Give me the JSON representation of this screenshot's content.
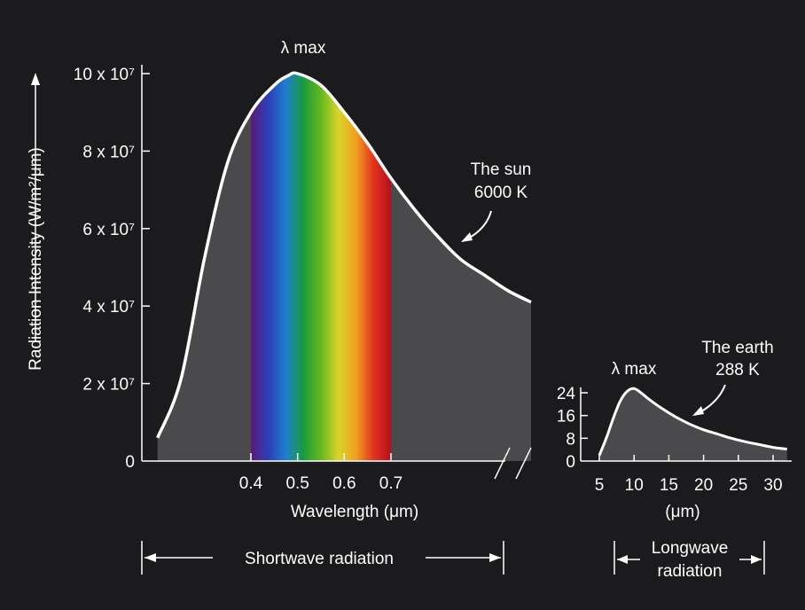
{
  "chart_data": [
    {
      "type": "line",
      "title": "",
      "xlabel": "Wavelength (μm)",
      "ylabel": "Radiation Intensity (W/m²/μm)",
      "ylim": [
        0,
        100000000
      ],
      "yticks": [
        {
          "value": 0,
          "label": "0"
        },
        {
          "value": 20000000,
          "label": "2 x 10⁷"
        },
        {
          "value": 40000000,
          "label": "4 x 10⁷"
        },
        {
          "value": 60000000,
          "label": "6 x 10⁷"
        },
        {
          "value": 80000000,
          "label": "8 x 10⁷"
        },
        {
          "value": 100000000,
          "label": "10 x 10⁷"
        }
      ],
      "xticks": [
        {
          "value": 0.4,
          "label": "0.4"
        },
        {
          "value": 0.5,
          "label": "0.5"
        },
        {
          "value": 0.6,
          "label": "0.6"
        },
        {
          "value": 0.7,
          "label": "0.7"
        }
      ],
      "visible_band": [
        0.4,
        0.7
      ],
      "series": [
        {
          "name": "The sun 6000 K",
          "x": [
            0.2,
            0.25,
            0.3,
            0.35,
            0.4,
            0.45,
            0.48,
            0.5,
            0.55,
            0.6,
            0.65,
            0.7,
            0.75,
            0.8,
            0.85,
            0.9,
            0.95,
            1.0
          ],
          "y": [
            6000000,
            21000000,
            52000000,
            77000000,
            90000000,
            97000000,
            99500000,
            100000000,
            97000000,
            90000000,
            82000000,
            73000000,
            65000000,
            58000000,
            52000000,
            48000000,
            44000000,
            41000000
          ]
        }
      ],
      "annotations": {
        "peak": "λ max",
        "curve_name": "The sun",
        "curve_temp": "6000 K"
      },
      "band_label": "Shortwave radiation"
    },
    {
      "type": "line",
      "title": "",
      "xlabel": "(μm)",
      "ylabel": "",
      "ylim": [
        0,
        24
      ],
      "yticks": [
        {
          "value": 0,
          "label": "0"
        },
        {
          "value": 8,
          "label": "8"
        },
        {
          "value": 16,
          "label": "16"
        },
        {
          "value": 24,
          "label": "24"
        }
      ],
      "xticks": [
        {
          "value": 5,
          "label": "5"
        },
        {
          "value": 10,
          "label": "10"
        },
        {
          "value": 15,
          "label": "15"
        },
        {
          "value": 20,
          "label": "20"
        },
        {
          "value": 25,
          "label": "25"
        },
        {
          "value": 30,
          "label": "30"
        }
      ],
      "series": [
        {
          "name": "The earth 288 K",
          "x": [
            5,
            6,
            7,
            8,
            9,
            10,
            11,
            12,
            14,
            16,
            18,
            20,
            22,
            24,
            26,
            28,
            30,
            32
          ],
          "y": [
            2,
            8,
            15,
            21,
            24.5,
            25.5,
            24,
            22,
            18.5,
            15.5,
            13,
            11,
            9.5,
            8,
            6.8,
            5.8,
            4.8,
            4.2
          ]
        }
      ],
      "annotations": {
        "peak": "λ max",
        "curve_name": "The earth",
        "curve_temp": "288 K"
      },
      "band_label_line1": "Longwave",
      "band_label_line2": "radiation"
    }
  ],
  "colors": {
    "background": "#1b1b1d",
    "axis": "#ffffff",
    "curve": "#ffffff",
    "fill": "#4a4a4c",
    "spectrum": [
      "#5b1a7a",
      "#2b3fb8",
      "#1e7fd0",
      "#1a9a3c",
      "#66b81e",
      "#d8d52a",
      "#f0a020",
      "#e0341e",
      "#b80e1c"
    ]
  }
}
